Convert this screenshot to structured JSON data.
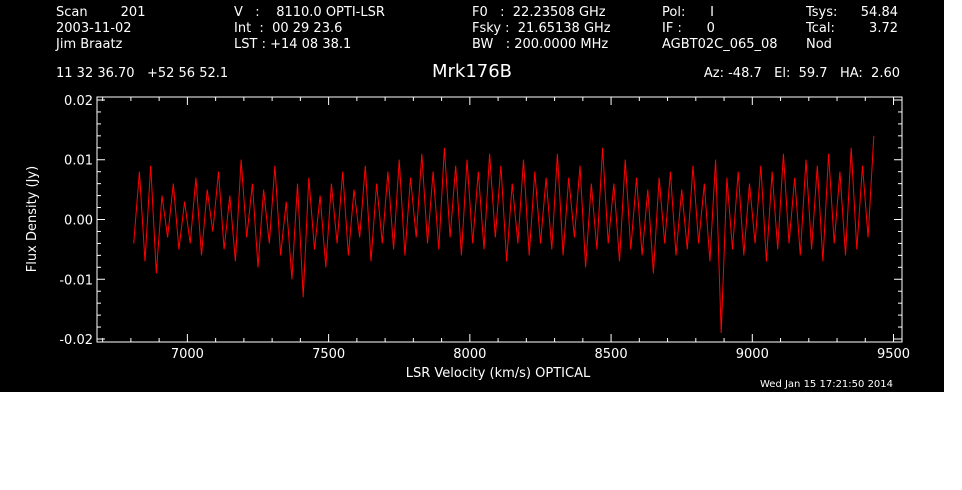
{
  "header": {
    "col1": [
      "Scan        201",
      "2003-11-02",
      "Jim Braatz"
    ],
    "col2": [
      "V   :    8110.0 OPTI-LSR",
      "Int  :  00 29 23.6",
      "LST : +14 08 38.1"
    ],
    "col3": [
      "F0   :  22.23508 GHz",
      "Fsky :  21.65138 GHz",
      "BW   : 200.0000 MHz"
    ],
    "col4": [
      "Pol:      I",
      "IF :      0",
      "AGBT02C_065_08"
    ],
    "col5_labels": [
      "Tsys:",
      "Tcal:",
      "Nod"
    ],
    "col5_values": [
      "54.84",
      "3.72",
      ""
    ],
    "coords": "11 32 36.70   +52 56 52.1",
    "source": "Mrk176B",
    "azelha": "Az: -48.7   El:  59.7   HA:  2.60",
    "date": "Wed Jan 15 17:21:50 2014"
  },
  "chart_data": {
    "type": "line",
    "title": "Mrk176B",
    "xlabel": "LSR Velocity (km/s) OPTICAL",
    "ylabel": "Flux Density (Jy)",
    "xlim": [
      6680,
      9530
    ],
    "ylim": [
      -0.0205,
      0.0205
    ],
    "x_ticks": [
      7000,
      7500,
      8000,
      8500,
      9000,
      9500
    ],
    "x_tick_labels": [
      "7000",
      "7500",
      "8000",
      "8500",
      "9000",
      "9500"
    ],
    "y_ticks": [
      -0.02,
      -0.01,
      0.0,
      0.01,
      0.02
    ],
    "y_tick_labels": [
      "-0.02",
      "-0.01",
      "0.00",
      "0.01",
      "0.02"
    ],
    "line_color": "#ff0000",
    "axis_color": "#ffffff",
    "background": "#000000",
    "series": [
      {
        "x": [
          6810,
          6830,
          6850,
          6870,
          6890,
          6910,
          6930,
          6950,
          6970,
          6990,
          7010,
          7030,
          7050,
          7070,
          7090,
          7110,
          7130,
          7150,
          7170,
          7190,
          7210,
          7230,
          7250,
          7270,
          7290,
          7310,
          7330,
          7350,
          7370,
          7390,
          7410,
          7430,
          7450,
          7470,
          7490,
          7510,
          7530,
          7550,
          7570,
          7590,
          7610,
          7630,
          7650,
          7670,
          7690,
          7710,
          7730,
          7750,
          7770,
          7790,
          7810,
          7830,
          7850,
          7870,
          7890,
          7910,
          7930,
          7950,
          7970,
          7990,
          8010,
          8030,
          8050,
          8070,
          8090,
          8110,
          8130,
          8150,
          8170,
          8190,
          8210,
          8230,
          8250,
          8270,
          8290,
          8310,
          8330,
          8350,
          8370,
          8390,
          8410,
          8430,
          8450,
          8470,
          8490,
          8510,
          8530,
          8550,
          8570,
          8590,
          8610,
          8630,
          8650,
          8670,
          8690,
          8710,
          8730,
          8750,
          8770,
          8790,
          8810,
          8830,
          8850,
          8870,
          8890,
          8910,
          8930,
          8950,
          8970,
          8990,
          9010,
          9030,
          9050,
          9070,
          9090,
          9110,
          9130,
          9150,
          9170,
          9190,
          9210,
          9230,
          9250,
          9270,
          9290,
          9310,
          9330,
          9350,
          9370,
          9390,
          9410,
          9430
        ],
        "y": [
          -0.004,
          0.008,
          -0.007,
          0.009,
          -0.009,
          0.004,
          -0.003,
          0.006,
          -0.005,
          0.003,
          -0.004,
          0.007,
          -0.006,
          0.005,
          -0.002,
          0.008,
          -0.005,
          0.004,
          -0.007,
          0.01,
          -0.003,
          0.006,
          -0.008,
          0.005,
          -0.004,
          0.009,
          -0.006,
          0.003,
          -0.01,
          0.006,
          -0.013,
          0.007,
          -0.005,
          0.004,
          -0.008,
          0.006,
          -0.004,
          0.008,
          -0.006,
          0.005,
          -0.003,
          0.009,
          -0.007,
          0.006,
          -0.004,
          0.008,
          -0.005,
          0.01,
          -0.006,
          0.007,
          -0.003,
          0.011,
          -0.004,
          0.008,
          -0.005,
          0.012,
          -0.003,
          0.009,
          -0.006,
          0.01,
          -0.004,
          0.008,
          -0.005,
          0.011,
          -0.003,
          0.009,
          -0.007,
          0.006,
          -0.004,
          0.01,
          -0.006,
          0.008,
          -0.004,
          0.007,
          -0.005,
          0.011,
          -0.006,
          0.007,
          -0.003,
          0.009,
          -0.008,
          0.006,
          -0.005,
          0.012,
          -0.004,
          0.006,
          -0.007,
          0.01,
          -0.005,
          0.007,
          -0.006,
          0.005,
          -0.009,
          0.007,
          -0.004,
          0.008,
          -0.006,
          0.005,
          -0.005,
          0.009,
          -0.004,
          0.006,
          -0.007,
          0.01,
          -0.019,
          0.007,
          -0.005,
          0.008,
          -0.006,
          0.006,
          -0.004,
          0.009,
          -0.007,
          0.008,
          -0.005,
          0.011,
          -0.004,
          0.007,
          -0.006,
          0.01,
          -0.005,
          0.009,
          -0.007,
          0.011,
          -0.004,
          0.008,
          -0.006,
          0.012,
          -0.005,
          0.009,
          -0.003,
          0.014
        ]
      }
    ]
  }
}
